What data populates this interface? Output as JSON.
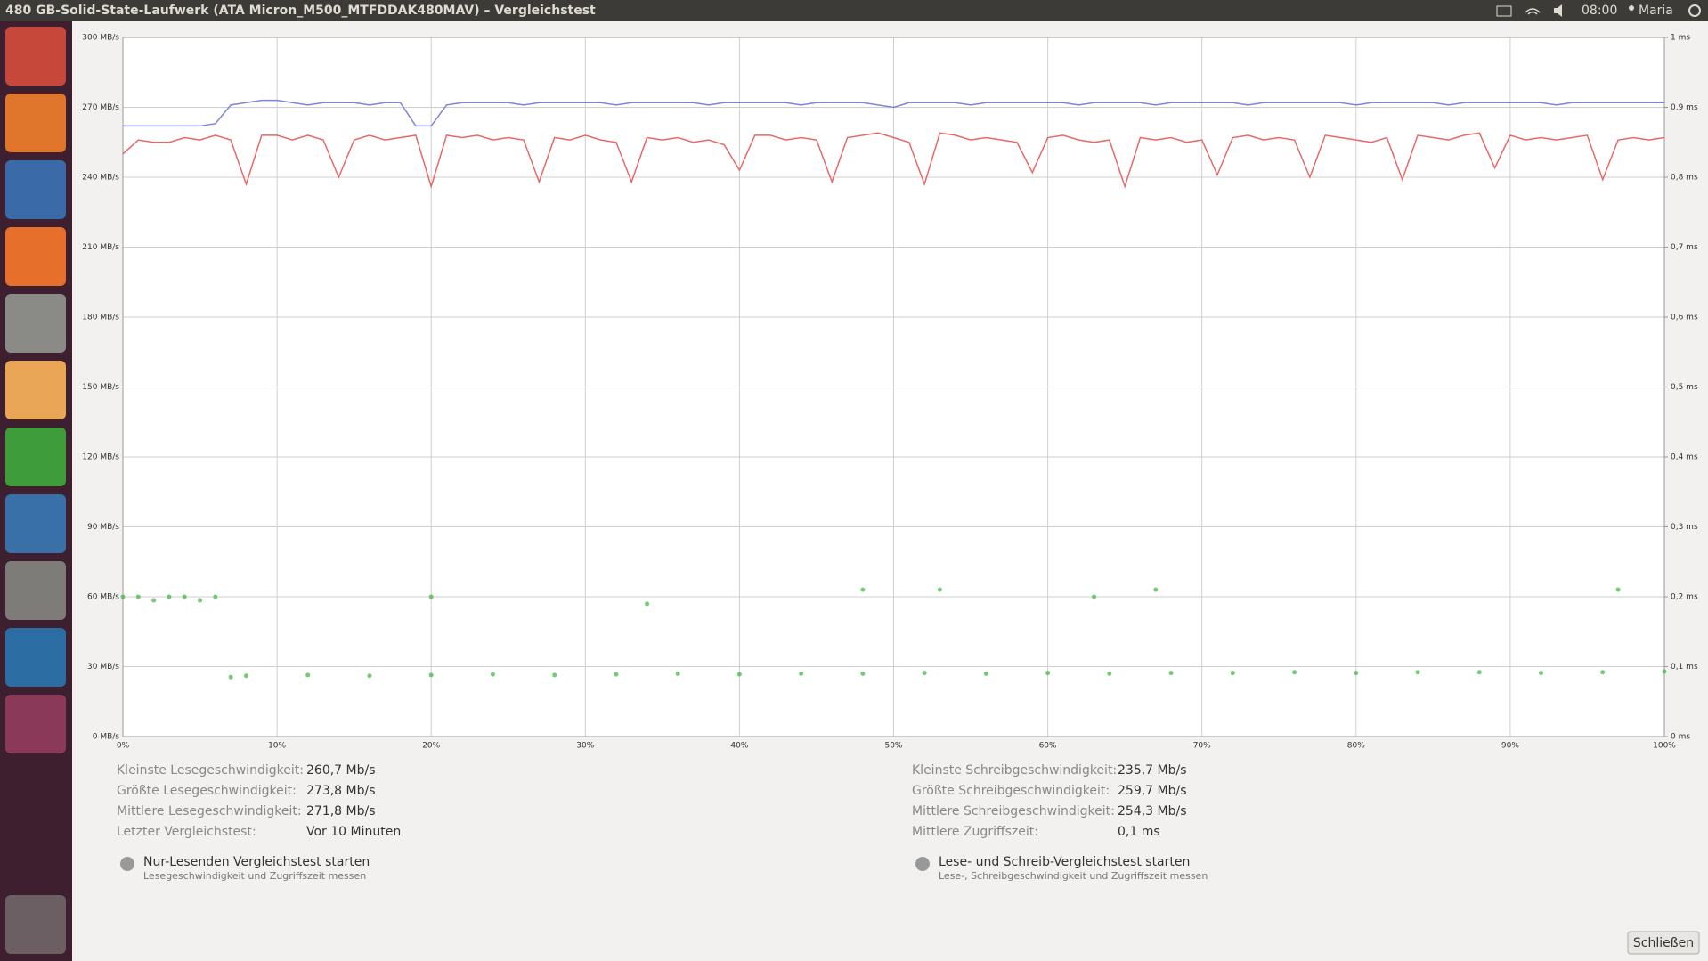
{
  "window": {
    "title": "480 GB-Solid-State-Laufwerk (ATA Micron_M500_MTFDDAK480MAV) – Vergleichstest",
    "clock": "08:00",
    "user": "Maria"
  },
  "chart_data": {
    "type": "line",
    "grid": true,
    "x": [
      0,
      1,
      2,
      3,
      4,
      5,
      6,
      7,
      8,
      9,
      10,
      11,
      12,
      13,
      14,
      15,
      16,
      17,
      18,
      19,
      20,
      21,
      22,
      23,
      24,
      25,
      26,
      27,
      28,
      29,
      30,
      31,
      32,
      33,
      34,
      35,
      36,
      37,
      38,
      39,
      40,
      41,
      42,
      43,
      44,
      45,
      46,
      47,
      48,
      49,
      50,
      51,
      52,
      53,
      54,
      55,
      56,
      57,
      58,
      59,
      60,
      61,
      62,
      63,
      64,
      65,
      66,
      67,
      68,
      69,
      70,
      71,
      72,
      73,
      74,
      75,
      76,
      77,
      78,
      79,
      80,
      81,
      82,
      83,
      84,
      85,
      86,
      87,
      88,
      89,
      90,
      91,
      92,
      93,
      94,
      95,
      96,
      97,
      98,
      99,
      100
    ],
    "xlim": [
      0,
      100
    ],
    "xticks": [
      {
        "value": 0,
        "label": "0%"
      },
      {
        "value": 10,
        "label": "10%"
      },
      {
        "value": 20,
        "label": "20%"
      },
      {
        "value": 30,
        "label": "30%"
      },
      {
        "value": 40,
        "label": "40%"
      },
      {
        "value": 50,
        "label": "50%"
      },
      {
        "value": 60,
        "label": "60%"
      },
      {
        "value": 70,
        "label": "70%"
      },
      {
        "value": 80,
        "label": "80%"
      },
      {
        "value": 90,
        "label": "90%"
      },
      {
        "value": 100,
        "label": "100%"
      }
    ],
    "ylim": [
      0,
      300
    ],
    "yticks": [
      {
        "value": 0,
        "label": "0 MB/s"
      },
      {
        "value": 30,
        "label": "30 MB/s"
      },
      {
        "value": 60,
        "label": "60 MB/s"
      },
      {
        "value": 90,
        "label": "90 MB/s"
      },
      {
        "value": 120,
        "label": "120 MB/s"
      },
      {
        "value": 150,
        "label": "150 MB/s"
      },
      {
        "value": 180,
        "label": "180 MB/s"
      },
      {
        "value": 210,
        "label": "210 MB/s"
      },
      {
        "value": 240,
        "label": "240 MB/s"
      },
      {
        "value": 270,
        "label": "270 MB/s"
      },
      {
        "value": 300,
        "label": "300 MB/s"
      }
    ],
    "y2lim": [
      0,
      1
    ],
    "y2ticks": [
      {
        "value": 0,
        "label": "0 ms"
      },
      {
        "value": 0.1,
        "label": "0,1 ms"
      },
      {
        "value": 0.2,
        "label": "0,2 ms"
      },
      {
        "value": 0.3,
        "label": "0,3 ms"
      },
      {
        "value": 0.4,
        "label": "0,4 ms"
      },
      {
        "value": 0.5,
        "label": "0,5 ms"
      },
      {
        "value": 0.6,
        "label": "0,6 ms"
      },
      {
        "value": 0.7,
        "label": "0,7 ms"
      },
      {
        "value": 0.8,
        "label": "0,8 ms"
      },
      {
        "value": 0.9,
        "label": "0,9 ms"
      },
      {
        "value": 1,
        "label": "1 ms"
      }
    ],
    "series": [
      {
        "type": "line",
        "color": "#7c84dc",
        "values": [
          262,
          262,
          262,
          262,
          262,
          262,
          263,
          271,
          272,
          273,
          273,
          272,
          271,
          272,
          272,
          272,
          271,
          272,
          272,
          262,
          262,
          271,
          272,
          272,
          272,
          272,
          271,
          272,
          272,
          272,
          272,
          272,
          271,
          272,
          272,
          272,
          272,
          272,
          271,
          272,
          272,
          272,
          272,
          272,
          271,
          272,
          272,
          272,
          272,
          271,
          270,
          272,
          272,
          272,
          272,
          271,
          272,
          272,
          272,
          272,
          272,
          272,
          271,
          272,
          272,
          272,
          272,
          271,
          272,
          272,
          272,
          272,
          272,
          271,
          272,
          272,
          272,
          272,
          272,
          272,
          271,
          272,
          272,
          272,
          272,
          272,
          271,
          272,
          272,
          272,
          272,
          272,
          272,
          271,
          272,
          272,
          272,
          272,
          272,
          272,
          272
        ]
      },
      {
        "type": "line",
        "color": "#e86868",
        "values": [
          250,
          256,
          255,
          255,
          257,
          256,
          258,
          256,
          237,
          258,
          258,
          256,
          258,
          256,
          240,
          256,
          258,
          256,
          257,
          258,
          236,
          258,
          257,
          258,
          256,
          257,
          256,
          238,
          257,
          256,
          258,
          256,
          255,
          238,
          257,
          256,
          257,
          255,
          256,
          254,
          243,
          258,
          258,
          256,
          257,
          256,
          238,
          257,
          258,
          259,
          257,
          255,
          237,
          259,
          258,
          256,
          257,
          256,
          255,
          242,
          257,
          258,
          256,
          255,
          256,
          236,
          257,
          256,
          257,
          255,
          256,
          241,
          257,
          258,
          256,
          257,
          256,
          240,
          258,
          257,
          256,
          255,
          257,
          239,
          258,
          257,
          256,
          258,
          259,
          244,
          258,
          256,
          257,
          256,
          257,
          258,
          239,
          256,
          257,
          256,
          257
        ]
      },
      {
        "type": "scatter",
        "axis": "y2",
        "color": "#3cb43c",
        "x": [
          0,
          1,
          2,
          3,
          4,
          5,
          6,
          7,
          8,
          12,
          16,
          20,
          24,
          28,
          32,
          36,
          40,
          44,
          48,
          52,
          56,
          60,
          64,
          68,
          72,
          76,
          80,
          84,
          88,
          92,
          96,
          100,
          20,
          34,
          48,
          53,
          63,
          67,
          97
        ],
        "values": [
          0.2,
          0.2,
          0.195,
          0.2,
          0.2,
          0.195,
          0.2,
          0.085,
          0.087,
          0.088,
          0.087,
          0.088,
          0.089,
          0.088,
          0.089,
          0.09,
          0.089,
          0.09,
          0.09,
          0.091,
          0.09,
          0.091,
          0.09,
          0.091,
          0.091,
          0.092,
          0.091,
          0.092,
          0.092,
          0.091,
          0.092,
          0.093,
          0.2,
          0.19,
          0.21,
          0.21,
          0.2,
          0.21,
          0.21
        ]
      }
    ]
  },
  "stats": {
    "read": [
      {
        "label": "Kleinste Lesegeschwindigkeit:",
        "value": "260,7 Mb/s"
      },
      {
        "label": "Größte Lesegeschwindigkeit:",
        "value": "273,8 Mb/s"
      },
      {
        "label": "Mittlere Lesegeschwindigkeit:",
        "value": "271,8 Mb/s"
      },
      {
        "label": "Letzter Vergleichstest:",
        "value": "Vor 10 Minuten"
      }
    ],
    "write": [
      {
        "label": "Kleinste Schreibgeschwindigkeit:",
        "value": "235,7 Mb/s"
      },
      {
        "label": "Größte Schreibgeschwindigkeit:",
        "value": "259,7 Mb/s"
      },
      {
        "label": "Mittlere Schreibgeschwindigkeit:",
        "value": "254,3 Mb/s"
      },
      {
        "label": "Mittlere Zugriffszeit:",
        "value": "0,1 ms"
      }
    ]
  },
  "actions": [
    {
      "label": "Nur-Lesenden Vergleichstest starten",
      "description": "Lesegeschwindigkeit und Zugriffszeit messen"
    },
    {
      "label": "Lese- und Schreib-Vergleichstest starten",
      "description": "Lese-, Schreibgeschwindigkeit und Zugriffszeit messen"
    }
  ],
  "close_button": "Schließen"
}
